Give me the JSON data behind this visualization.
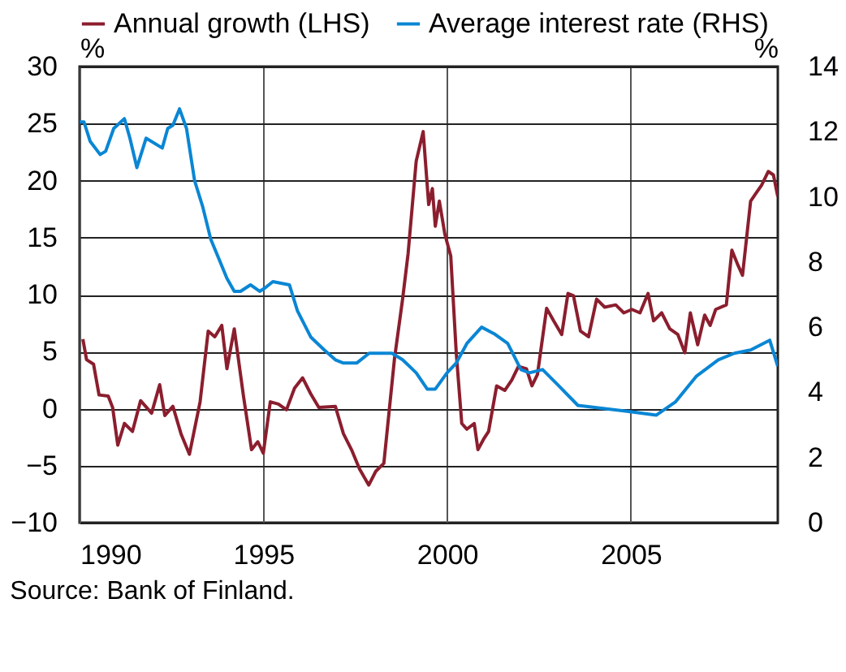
{
  "chart_data": {
    "type": "line",
    "ylabel": "%",
    "y2label": "%",
    "xlim": [
      1990,
      2009
    ],
    "xticks": [
      1990,
      1995,
      2000,
      2005
    ],
    "ylim": [
      -10,
      30
    ],
    "yticks": [
      -10,
      -5,
      0,
      5,
      10,
      15,
      20,
      25,
      30
    ],
    "y2lim": [
      0,
      14
    ],
    "y2ticks": [
      0,
      2,
      4,
      6,
      8,
      10,
      12,
      14
    ],
    "grid": true,
    "legend": "top",
    "annotations": [
      "Source: Bank of Finland."
    ],
    "series": [
      {
        "name": "Annual growth (LHS)",
        "color": "#8b1e2e",
        "x": [
          1990.09,
          1990.19,
          1990.38,
          1990.53,
          1990.78,
          1990.9,
          1991.04,
          1991.22,
          1991.44,
          1991.66,
          1991.96,
          1992.18,
          1992.32,
          1992.54,
          1992.76,
          1992.99,
          1993.28,
          1993.5,
          1993.68,
          1993.87,
          1994.01,
          1994.21,
          1994.46,
          1994.68,
          1994.85,
          1995.0,
          1995.19,
          1995.41,
          1995.63,
          1995.85,
          1996.07,
          1996.29,
          1996.51,
          1996.96,
          1997.18,
          1997.4,
          1997.62,
          1997.87,
          1998.06,
          1998.28,
          1998.57,
          1998.79,
          1998.94,
          1999.16,
          1999.35,
          1999.5,
          1999.6,
          1999.68,
          1999.79,
          1999.94,
          2000.1,
          2000.25,
          2000.4,
          2000.54,
          2000.74,
          2000.84,
          2000.99,
          2001.13,
          2001.35,
          2001.57,
          2001.76,
          2001.94,
          2002.16,
          2002.31,
          2002.46,
          2002.71,
          2002.9,
          2003.12,
          2003.29,
          2003.44,
          2003.63,
          2003.85,
          2004.07,
          2004.29,
          2004.59,
          2004.81,
          2005.03,
          2005.25,
          2005.47,
          2005.62,
          2005.84,
          2006.06,
          2006.28,
          2006.47,
          2006.62,
          2006.82,
          2007.01,
          2007.16,
          2007.31,
          2007.6,
          2007.75,
          2007.9,
          2008.04,
          2008.26,
          2008.41,
          2008.56,
          2008.74,
          2008.88,
          2009.0
        ],
        "values": [
          6.1,
          4.3,
          3.9,
          1.2,
          1.1,
          0.1,
          -3.2,
          -1.3,
          -2.0,
          0.7,
          -0.4,
          2.1,
          -0.6,
          0.2,
          -2.2,
          -4.0,
          0.6,
          6.8,
          6.3,
          7.3,
          3.5,
          7.0,
          1.1,
          -3.6,
          -2.9,
          -3.9,
          0.6,
          0.4,
          -0.1,
          1.8,
          2.7,
          1.3,
          0.1,
          0.2,
          -2.2,
          -3.6,
          -5.3,
          -6.7,
          -5.5,
          -4.8,
          4.4,
          9.6,
          13.6,
          21.7,
          24.3,
          17.9,
          19.3,
          16.0,
          18.2,
          15.3,
          13.4,
          4.9,
          -1.3,
          -1.8,
          -1.3,
          -3.6,
          -2.7,
          -2.0,
          2.0,
          1.6,
          2.5,
          3.7,
          3.5,
          2.0,
          3.0,
          8.8,
          7.7,
          6.5,
          10.1,
          9.9,
          6.8,
          6.3,
          9.6,
          8.9,
          9.1,
          8.4,
          8.7,
          8.4,
          10.1,
          7.7,
          8.4,
          7.0,
          6.5,
          4.9,
          8.4,
          5.6,
          8.2,
          7.3,
          8.7,
          9.1,
          13.9,
          12.7,
          11.7,
          18.2,
          18.9,
          19.6,
          20.8,
          20.5,
          18.6
        ]
      },
      {
        "name": "Average interest rate (RHS)",
        "color": "#0a86d4",
        "axis": "y2",
        "x": [
          1990.0,
          1990.12,
          1990.29,
          1990.56,
          1990.71,
          1990.93,
          1991.22,
          1991.37,
          1991.56,
          1991.81,
          1992.25,
          1992.4,
          1992.54,
          1992.72,
          1992.91,
          1993.13,
          1993.35,
          1993.57,
          1993.79,
          1994.01,
          1994.21,
          1994.38,
          1994.65,
          1994.9,
          1995.04,
          1995.26,
          1995.71,
          1995.93,
          1996.29,
          1996.66,
          1996.96,
          1997.18,
          1997.54,
          1997.88,
          1998.21,
          1998.5,
          1998.79,
          1999.16,
          1999.46,
          1999.68,
          2000.0,
          2000.25,
          2000.54,
          2000.94,
          2001.28,
          2001.65,
          2002.01,
          2002.24,
          2002.6,
          2003.04,
          2003.56,
          2004.29,
          2005.03,
          2005.69,
          2006.21,
          2006.79,
          2007.38,
          2007.82,
          2008.26,
          2008.78,
          2009.0
        ],
        "values": [
          12.3,
          12.3,
          11.7,
          11.3,
          11.4,
          12.1,
          12.4,
          11.8,
          10.9,
          11.8,
          11.5,
          12.1,
          12.2,
          12.7,
          12.1,
          10.5,
          9.7,
          8.7,
          8.1,
          7.5,
          7.1,
          7.1,
          7.3,
          7.1,
          7.2,
          7.4,
          7.3,
          6.5,
          5.7,
          5.3,
          5.0,
          4.9,
          4.9,
          5.2,
          5.2,
          5.2,
          5.0,
          4.6,
          4.1,
          4.1,
          4.6,
          4.9,
          5.5,
          6.0,
          5.8,
          5.5,
          4.7,
          4.6,
          4.7,
          4.2,
          3.6,
          3.5,
          3.4,
          3.3,
          3.7,
          4.5,
          5.0,
          5.2,
          5.3,
          5.6,
          4.8
        ]
      }
    ]
  }
}
